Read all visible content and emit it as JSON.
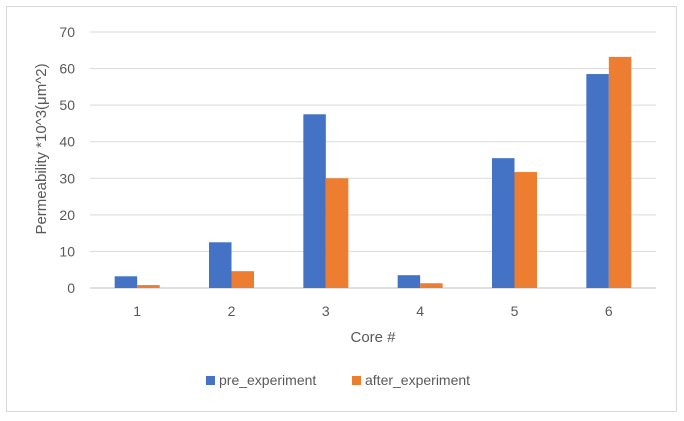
{
  "chart_data": {
    "type": "bar",
    "title": "",
    "xlabel": "Core #",
    "ylabel": "Permeability *10^3(μm^2)",
    "categories": [
      "1",
      "2",
      "3",
      "4",
      "5",
      "6"
    ],
    "ylim": [
      0,
      70
    ],
    "yticks": [
      0,
      10,
      20,
      30,
      40,
      50,
      60,
      70
    ],
    "grid": true,
    "legend_position": "bottom",
    "series": [
      {
        "name": "pre_experiment",
        "color": "#4472c4",
        "values": [
          3.2,
          12.5,
          47.5,
          3.5,
          35.5,
          58.5
        ]
      },
      {
        "name": "after_experiment",
        "color": "#ed7d31",
        "values": [
          0.8,
          4.6,
          30.0,
          1.3,
          31.7,
          63.2
        ]
      }
    ]
  }
}
